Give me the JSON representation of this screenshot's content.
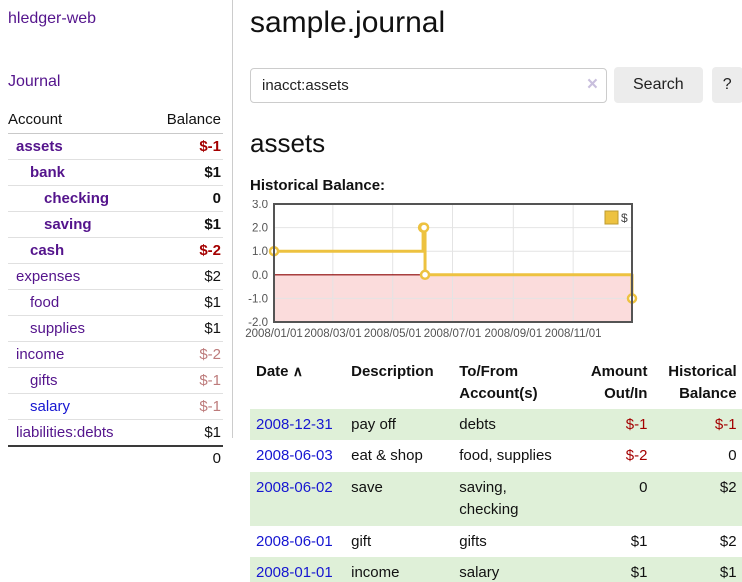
{
  "app": {
    "brand": "hledger-web",
    "nav_journal": "Journal"
  },
  "header": {
    "title": "sample.journal"
  },
  "search": {
    "value": "inacct:assets",
    "clear_icon": "×",
    "search_button": "Search",
    "help_button": "?"
  },
  "main": {
    "account_title": "assets",
    "chart_label": "Historical Balance:"
  },
  "sidebar": {
    "columns": {
      "account": "Account",
      "balance": "Balance"
    },
    "accounts": [
      {
        "name": "assets",
        "balance": "$-1",
        "depth": 1,
        "bold": true,
        "neg": "strong"
      },
      {
        "name": "bank",
        "balance": "$1",
        "depth": 2,
        "bold": true,
        "neg": null
      },
      {
        "name": "checking",
        "balance": "0",
        "depth": 3,
        "bold": true,
        "neg": null
      },
      {
        "name": "saving",
        "balance": "$1",
        "depth": 3,
        "bold": true,
        "neg": null
      },
      {
        "name": "cash",
        "balance": "$-2",
        "depth": 2,
        "bold": true,
        "neg": "strong"
      },
      {
        "name": "expenses",
        "balance": "$2",
        "depth": 1,
        "bold": false,
        "neg": null
      },
      {
        "name": "food",
        "balance": "$1",
        "depth": 2,
        "bold": false,
        "neg": null
      },
      {
        "name": "supplies",
        "balance": "$1",
        "depth": 2,
        "bold": false,
        "neg": null
      },
      {
        "name": "income",
        "balance": "$-2",
        "depth": 1,
        "bold": false,
        "neg": "soft"
      },
      {
        "name": "gifts",
        "balance": "$-1",
        "depth": 2,
        "bold": false,
        "neg": "soft"
      },
      {
        "name": "salary",
        "balance": "$-1",
        "depth": 2,
        "bold": false,
        "neg": "soft",
        "link_color": "blue"
      },
      {
        "name": "liabilities:debts",
        "balance": "$1",
        "depth": 1,
        "bold": false,
        "neg": null
      }
    ],
    "total": "0"
  },
  "chart_data": {
    "type": "line",
    "title": "Historical Balance:",
    "legend": "$",
    "legend_position": "top-right",
    "step": true,
    "series": [
      {
        "name": "$",
        "color": "#edc240",
        "points": [
          {
            "x": "2008-01-01",
            "y": 1
          },
          {
            "x": "2008-06-01",
            "y": 2
          },
          {
            "x": "2008-06-02",
            "y": 2
          },
          {
            "x": "2008-06-03",
            "y": 0
          },
          {
            "x": "2008-12-31",
            "y": -1
          }
        ]
      }
    ],
    "xlim": [
      "2008-01-01",
      "2008-12-31"
    ],
    "ylim": [
      -2,
      3
    ],
    "x_ticks": [
      "2008/01/01",
      "2008/03/01",
      "2008/05/01",
      "2008/07/01",
      "2008/09/01",
      "2008/11/01"
    ],
    "y_ticks": [
      "3.0",
      "2.0",
      "1.0",
      "0.0",
      "-1.0",
      "-2.0"
    ],
    "grid": true,
    "negative_region_fill": "#fbdcdc",
    "zero_line_color": "#8b0000",
    "axis_text_color": "#545454",
    "border_color": "#545454"
  },
  "register": {
    "columns": [
      "Date",
      "Description",
      "To/From Account(s)",
      "Amount Out/In",
      "Historical Balance"
    ],
    "sort_caret": "∧",
    "rows": [
      {
        "date": "2008-12-31",
        "description": "pay off",
        "accounts": "debts",
        "amount": "$-1",
        "balance": "$-1"
      },
      {
        "date": "2008-06-03",
        "description": "eat & shop",
        "accounts": "food, supplies",
        "amount": "$-2",
        "balance": "0"
      },
      {
        "date": "2008-06-02",
        "description": "save",
        "accounts": "saving, checking",
        "amount": "0",
        "balance": "$2"
      },
      {
        "date": "2008-06-01",
        "description": "gift",
        "accounts": "gifts",
        "amount": "$1",
        "balance": "$2"
      },
      {
        "date": "2008-01-01",
        "description": "income",
        "accounts": "salary",
        "amount": "$1",
        "balance": "$1"
      }
    ]
  },
  "colors": {
    "link_purple": "#54148c",
    "link_blue": "#1616d1",
    "negative_strong": "#a40000",
    "negative_soft": "#bd7b7b",
    "row_stripe_green": "#dff0d8",
    "chart_series_yellow": "#edc240"
  }
}
